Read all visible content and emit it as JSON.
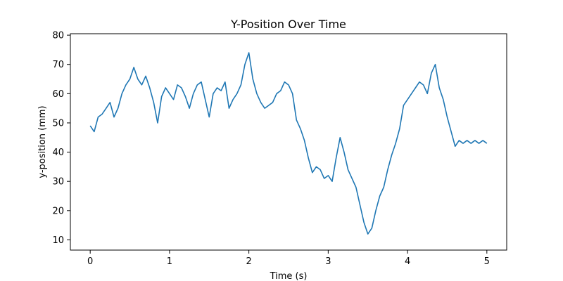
{
  "chart_data": {
    "type": "line",
    "title": "Y-Position Over Time",
    "xlabel": "Time (s)",
    "ylabel": "y-position (mm)",
    "xlim": [
      -0.25,
      5.25
    ],
    "ylim": [
      6.5,
      80.5
    ],
    "x_ticks": [
      0,
      1,
      2,
      3,
      4,
      5
    ],
    "y_ticks": [
      10,
      20,
      30,
      40,
      50,
      60,
      70,
      80
    ],
    "grid": false,
    "line_color": "#1f77b4",
    "series": [
      {
        "x": [
          0.0,
          0.05,
          0.1,
          0.15,
          0.2,
          0.25,
          0.3,
          0.35,
          0.4,
          0.45,
          0.5,
          0.55,
          0.6,
          0.65,
          0.7,
          0.75,
          0.8,
          0.85,
          0.9,
          0.95,
          1.0,
          1.05,
          1.1,
          1.15,
          1.2,
          1.25,
          1.3,
          1.35,
          1.4,
          1.45,
          1.5,
          1.55,
          1.6,
          1.65,
          1.7,
          1.75,
          1.8,
          1.85,
          1.9,
          1.95,
          2.0,
          2.05,
          2.1,
          2.15,
          2.2,
          2.25,
          2.3,
          2.35,
          2.4,
          2.45,
          2.5,
          2.55,
          2.6,
          2.65,
          2.7,
          2.75,
          2.8,
          2.85,
          2.9,
          2.95,
          3.0,
          3.05,
          3.1,
          3.15,
          3.2,
          3.25,
          3.3,
          3.35,
          3.4,
          3.45,
          3.5,
          3.55,
          3.6,
          3.65,
          3.7,
          3.75,
          3.8,
          3.85,
          3.9,
          3.95,
          4.0,
          4.05,
          4.1,
          4.15,
          4.2,
          4.25,
          4.3,
          4.35,
          4.4,
          4.45,
          4.5,
          4.55,
          4.6,
          4.65,
          4.7,
          4.75,
          4.8,
          4.85,
          4.9,
          4.95,
          5.0
        ],
        "y": [
          49,
          47,
          52,
          53,
          55,
          57,
          52,
          55,
          60,
          63,
          65,
          69,
          65,
          63,
          66,
          62,
          57,
          50,
          59,
          62,
          60,
          58,
          63,
          62,
          59,
          55,
          60,
          63,
          64,
          58,
          52,
          60,
          62,
          61,
          64,
          55,
          58,
          60,
          63,
          70,
          74,
          65,
          60,
          57,
          55,
          56,
          57,
          60,
          61,
          64,
          63,
          60,
          51,
          48,
          44,
          38,
          33,
          35,
          34,
          31,
          32,
          30,
          38,
          45,
          40,
          34,
          31,
          28,
          22,
          16,
          12,
          14,
          20,
          25,
          28,
          34,
          39,
          43,
          48,
          56,
          58,
          60,
          62,
          64,
          63,
          60,
          67,
          70,
          62,
          58,
          52,
          47,
          42,
          44,
          43,
          44,
          43,
          44,
          43,
          44,
          43
        ]
      }
    ]
  }
}
